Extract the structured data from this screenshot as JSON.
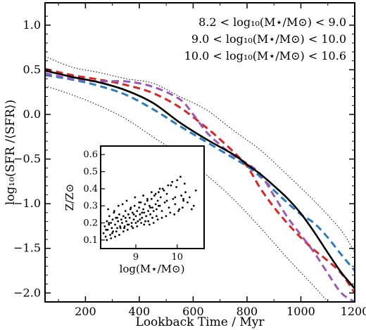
{
  "chart_data": [
    {
      "type": "line",
      "xlabel": "Lookback Time / Myr",
      "ylabel": "log₁₀(SFR /⟨SFR⟩)",
      "xlim": [
        50,
        1200
      ],
      "ylim": [
        -2.1,
        1.25
      ],
      "xticks": [
        200,
        400,
        600,
        800,
        1000,
        1200
      ],
      "yticks": [
        -2.0,
        -1.5,
        -1.0,
        -0.5,
        0.0,
        0.5,
        1.0
      ],
      "grid": false,
      "legend_position": "top-right",
      "series": [
        {
          "name": "8.2 < log₁₀(M⋆/M⊙) < 9.0",
          "color": "#2b7bb9",
          "style": "dashed",
          "x": [
            50,
            150,
            250,
            350,
            450,
            550,
            650,
            750,
            800,
            850,
            900,
            950,
            1000,
            1050,
            1100,
            1150,
            1200
          ],
          "y": [
            0.44,
            0.39,
            0.32,
            0.22,
            0.06,
            -0.13,
            -0.31,
            -0.49,
            -0.58,
            -0.7,
            -0.85,
            -0.99,
            -1.12,
            -1.22,
            -1.38,
            -1.57,
            -1.75
          ]
        },
        {
          "name": "9.0 < log₁₀(M⋆/M⊙) < 10.0",
          "color": "#d62728",
          "style": "dashed",
          "x": [
            50,
            150,
            250,
            350,
            450,
            550,
            650,
            700,
            750,
            800,
            850,
            900,
            950,
            1000,
            1050,
            1100,
            1150,
            1200
          ],
          "y": [
            0.51,
            0.44,
            0.39,
            0.33,
            0.24,
            0.08,
            -0.15,
            -0.28,
            -0.42,
            -0.58,
            -0.83,
            -1.04,
            -1.22,
            -1.38,
            -1.52,
            -1.64,
            -1.78,
            -2.0
          ]
        },
        {
          "name": "10.0 < log₁₀(M⋆/M⊙) < 10.6",
          "color": "#9b59b6",
          "style": "dashed",
          "x": [
            50,
            150,
            250,
            350,
            450,
            550,
            600,
            650,
            700,
            750,
            800,
            850,
            900,
            950,
            1000,
            1050,
            1100,
            1150,
            1200
          ],
          "y": [
            0.46,
            0.4,
            0.37,
            0.37,
            0.31,
            0.17,
            0.0,
            -0.2,
            -0.34,
            -0.46,
            -0.55,
            -0.67,
            -0.91,
            -1.15,
            -1.35,
            -1.55,
            -1.78,
            -2.0,
            -2.1
          ]
        },
        {
          "name": "",
          "color": "#000000",
          "style": "solid",
          "x": [
            50,
            150,
            250,
            350,
            450,
            550,
            650,
            750,
            800,
            850,
            900,
            950,
            1000,
            1050,
            1100,
            1150,
            1200
          ],
          "y": [
            0.49,
            0.42,
            0.36,
            0.27,
            0.13,
            -0.09,
            -0.28,
            -0.45,
            -0.56,
            -0.67,
            -0.8,
            -0.94,
            -1.11,
            -1.32,
            -1.55,
            -1.77,
            -1.95
          ]
        },
        {
          "name": "",
          "color": "#000000",
          "style": "dotted",
          "x": [
            50,
            150,
            250,
            350,
            450,
            550,
            650,
            750,
            850,
            950,
            1050,
            1150,
            1200
          ],
          "y": [
            0.65,
            0.53,
            0.47,
            0.4,
            0.35,
            0.2,
            0.05,
            -0.18,
            -0.4,
            -0.68,
            -0.97,
            -1.3,
            -1.55
          ]
        },
        {
          "name": "",
          "color": "#000000",
          "style": "dotted",
          "x": [
            50,
            150,
            250,
            350,
            450,
            550,
            650,
            750,
            850,
            950,
            1050,
            1100
          ],
          "y": [
            0.32,
            0.22,
            0.1,
            -0.05,
            -0.25,
            -0.45,
            -0.68,
            -0.95,
            -1.27,
            -1.61,
            -1.93,
            -2.1
          ]
        }
      ]
    },
    {
      "type": "scatter",
      "xlabel": "log(M⋆/M⊙)",
      "ylabel": "Z/Z⊙",
      "xlim": [
        8.15,
        10.65
      ],
      "ylim": [
        0.05,
        0.65
      ],
      "xticks": [
        9,
        10
      ],
      "yticks": [
        0.1,
        0.2,
        0.3,
        0.4,
        0.5,
        0.6
      ],
      "color": "#000000",
      "x": [
        8.22,
        8.25,
        8.27,
        8.3,
        8.32,
        8.35,
        8.36,
        8.38,
        8.4,
        8.42,
        8.44,
        8.45,
        8.47,
        8.5,
        8.52,
        8.55,
        8.57,
        8.6,
        8.62,
        8.65,
        8.67,
        8.7,
        8.72,
        8.75,
        8.77,
        8.8,
        8.82,
        8.85,
        8.87,
        8.9,
        8.92,
        8.95,
        8.97,
        9.0,
        9.03,
        9.05,
        9.08,
        9.1,
        9.12,
        9.15,
        9.18,
        9.2,
        9.22,
        9.25,
        9.28,
        9.3,
        9.33,
        9.35,
        9.38,
        9.4,
        9.43,
        9.45,
        9.48,
        9.5,
        9.53,
        9.55,
        9.58,
        9.6,
        9.63,
        9.65,
        9.7,
        9.75,
        9.8,
        9.85,
        9.9,
        9.95,
        10.0,
        10.05,
        10.1,
        10.15,
        10.2,
        10.3,
        10.4,
        8.3,
        8.4,
        8.5,
        8.6,
        8.7,
        8.8,
        8.9,
        9.0,
        9.1,
        9.2,
        9.3,
        9.4,
        9.5,
        8.33,
        8.48,
        8.58,
        8.68,
        8.78,
        8.88,
        8.98,
        9.08,
        9.18,
        9.28,
        9.38,
        9.48,
        9.58,
        9.68,
        9.78,
        9.88,
        9.98,
        10.08,
        10.18,
        8.28,
        8.43,
        8.53,
        8.63,
        8.73,
        8.83,
        8.93,
        9.03,
        9.13,
        9.23,
        9.33,
        9.43,
        9.53,
        9.63,
        9.73,
        9.83,
        9.93,
        10.03,
        10.13,
        10.25,
        10.35,
        8.35,
        8.55,
        8.75,
        8.95,
        9.15,
        9.35,
        9.55,
        9.75,
        9.95,
        10.15,
        10.45
      ],
      "y": [
        0.14,
        0.18,
        0.12,
        0.21,
        0.16,
        0.19,
        0.24,
        0.13,
        0.2,
        0.17,
        0.22,
        0.15,
        0.26,
        0.19,
        0.23,
        0.17,
        0.21,
        0.25,
        0.18,
        0.22,
        0.2,
        0.24,
        0.17,
        0.27,
        0.21,
        0.19,
        0.25,
        0.23,
        0.28,
        0.2,
        0.26,
        0.22,
        0.3,
        0.24,
        0.27,
        0.21,
        0.29,
        0.25,
        0.32,
        0.23,
        0.28,
        0.26,
        0.31,
        0.24,
        0.33,
        0.27,
        0.3,
        0.25,
        0.34,
        0.29,
        0.27,
        0.36,
        0.31,
        0.28,
        0.33,
        0.38,
        0.3,
        0.35,
        0.27,
        0.4,
        0.32,
        0.37,
        0.29,
        0.42,
        0.34,
        0.31,
        0.45,
        0.28,
        0.36,
        0.33,
        0.38,
        0.35,
        0.3,
        0.1,
        0.11,
        0.12,
        0.13,
        0.15,
        0.16,
        0.18,
        0.2,
        0.22,
        0.19,
        0.21,
        0.23,
        0.24,
        0.28,
        0.27,
        0.3,
        0.31,
        0.33,
        0.29,
        0.35,
        0.32,
        0.36,
        0.34,
        0.38,
        0.37,
        0.4,
        0.39,
        0.42,
        0.44,
        0.41,
        0.47,
        0.43,
        0.16,
        0.14,
        0.15,
        0.17,
        0.18,
        0.19,
        0.17,
        0.18,
        0.2,
        0.21,
        0.19,
        0.2,
        0.22,
        0.23,
        0.24,
        0.26,
        0.25,
        0.27,
        0.29,
        0.32,
        0.28,
        0.2,
        0.23,
        0.23,
        0.25,
        0.26,
        0.29,
        0.3,
        0.33,
        0.35,
        0.34,
        0.39
      ]
    }
  ]
}
